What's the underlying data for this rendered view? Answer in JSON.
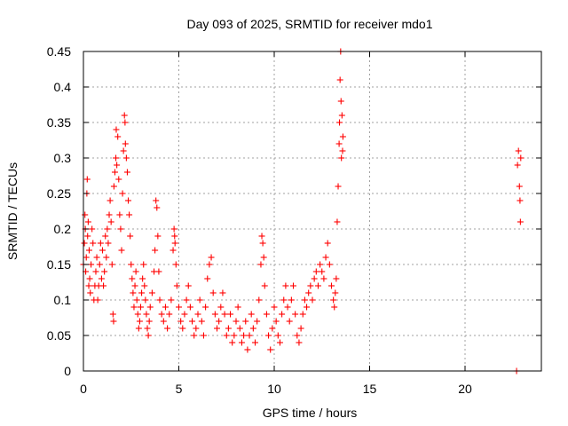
{
  "colors": {
    "series": "#ff0000",
    "grid": "#a0a0a0",
    "axis": "#000000",
    "background": "#ffffff"
  },
  "chart_data": {
    "type": "scatter",
    "title": "Day 093 of 2025, SRMTID for receiver mdo1",
    "xlabel": "GPS time / hours",
    "ylabel": "SRMTID / TECUs",
    "xlim": [
      0,
      24
    ],
    "ylim": [
      0,
      0.45
    ],
    "xticks": [
      0,
      5,
      10,
      15,
      20
    ],
    "xtick_labels": [
      "0",
      "5",
      "10",
      "15",
      "20"
    ],
    "yticks": [
      0,
      0.05,
      0.1,
      0.15,
      0.2,
      0.25,
      0.3,
      0.35,
      0.4,
      0.45
    ],
    "ytick_labels": [
      "0",
      "0.05",
      "0.1",
      "0.15",
      "0.2",
      "0.25",
      "0.3",
      "0.35",
      "0.4",
      "0.45"
    ],
    "grid": true,
    "marker": "+",
    "series": [
      {
        "name": "SRMTID",
        "points": [
          [
            0.0,
            0.15
          ],
          [
            0.05,
            0.18
          ],
          [
            0.08,
            0.22
          ],
          [
            0.1,
            0.2
          ],
          [
            0.12,
            0.14
          ],
          [
            0.15,
            0.16
          ],
          [
            0.18,
            0.25
          ],
          [
            0.2,
            0.27
          ],
          [
            0.22,
            0.19
          ],
          [
            0.25,
            0.21
          ],
          [
            0.28,
            0.12
          ],
          [
            0.3,
            0.17
          ],
          [
            0.33,
            0.13
          ],
          [
            0.36,
            0.11
          ],
          [
            0.4,
            0.15
          ],
          [
            0.45,
            0.2
          ],
          [
            0.5,
            0.18
          ],
          [
            0.55,
            0.1
          ],
          [
            0.6,
            0.12
          ],
          [
            0.65,
            0.14
          ],
          [
            0.7,
            0.16
          ],
          [
            0.75,
            0.1
          ],
          [
            0.8,
            0.12
          ],
          [
            0.85,
            0.15
          ],
          [
            0.9,
            0.18
          ],
          [
            0.95,
            0.13
          ],
          [
            1.0,
            0.17
          ],
          [
            1.05,
            0.12
          ],
          [
            1.1,
            0.14
          ],
          [
            1.15,
            0.19
          ],
          [
            1.2,
            0.16
          ],
          [
            1.25,
            0.2
          ],
          [
            1.3,
            0.18
          ],
          [
            1.35,
            0.22
          ],
          [
            1.4,
            0.24
          ],
          [
            1.45,
            0.21
          ],
          [
            1.5,
            0.15
          ],
          [
            1.55,
            0.08
          ],
          [
            1.58,
            0.07
          ],
          [
            1.6,
            0.26
          ],
          [
            1.65,
            0.28
          ],
          [
            1.7,
            0.3
          ],
          [
            1.72,
            0.34
          ],
          [
            1.75,
            0.29
          ],
          [
            1.8,
            0.33
          ],
          [
            1.85,
            0.27
          ],
          [
            1.9,
            0.22
          ],
          [
            1.95,
            0.2
          ],
          [
            2.0,
            0.17
          ],
          [
            2.05,
            0.25
          ],
          [
            2.1,
            0.31
          ],
          [
            2.15,
            0.36
          ],
          [
            2.18,
            0.35
          ],
          [
            2.2,
            0.32
          ],
          [
            2.25,
            0.3
          ],
          [
            2.3,
            0.28
          ],
          [
            2.35,
            0.24
          ],
          [
            2.4,
            0.22
          ],
          [
            2.45,
            0.19
          ],
          [
            2.5,
            0.15
          ],
          [
            2.55,
            0.13
          ],
          [
            2.6,
            0.11
          ],
          [
            2.65,
            0.09
          ],
          [
            2.7,
            0.12
          ],
          [
            2.75,
            0.14
          ],
          [
            2.8,
            0.1
          ],
          [
            2.85,
            0.08
          ],
          [
            2.9,
            0.06
          ],
          [
            2.95,
            0.07
          ],
          [
            3.0,
            0.09
          ],
          [
            3.05,
            0.11
          ],
          [
            3.1,
            0.13
          ],
          [
            3.15,
            0.15
          ],
          [
            3.2,
            0.12
          ],
          [
            3.25,
            0.1
          ],
          [
            3.3,
            0.08
          ],
          [
            3.35,
            0.06
          ],
          [
            3.4,
            0.05
          ],
          [
            3.45,
            0.07
          ],
          [
            3.5,
            0.09
          ],
          [
            3.6,
            0.11
          ],
          [
            3.7,
            0.14
          ],
          [
            3.75,
            0.17
          ],
          [
            3.8,
            0.24
          ],
          [
            3.85,
            0.23
          ],
          [
            3.9,
            0.19
          ],
          [
            3.95,
            0.14
          ],
          [
            4.0,
            0.1
          ],
          [
            4.1,
            0.08
          ],
          [
            4.2,
            0.07
          ],
          [
            4.3,
            0.09
          ],
          [
            4.4,
            0.06
          ],
          [
            4.5,
            0.08
          ],
          [
            4.6,
            0.1
          ],
          [
            4.7,
            0.17
          ],
          [
            4.75,
            0.2
          ],
          [
            4.78,
            0.19
          ],
          [
            4.8,
            0.18
          ],
          [
            4.85,
            0.15
          ],
          [
            4.9,
            0.12
          ],
          [
            5.0,
            0.09
          ],
          [
            5.1,
            0.07
          ],
          [
            5.2,
            0.06
          ],
          [
            5.3,
            0.08
          ],
          [
            5.4,
            0.1
          ],
          [
            5.5,
            0.12
          ],
          [
            5.6,
            0.09
          ],
          [
            5.7,
            0.07
          ],
          [
            5.8,
            0.05
          ],
          [
            5.9,
            0.06
          ],
          [
            6.0,
            0.08
          ],
          [
            6.1,
            0.1
          ],
          [
            6.2,
            0.07
          ],
          [
            6.3,
            0.05
          ],
          [
            6.4,
            0.09
          ],
          [
            6.5,
            0.13
          ],
          [
            6.6,
            0.15
          ],
          [
            6.7,
            0.16
          ],
          [
            6.8,
            0.11
          ],
          [
            6.9,
            0.08
          ],
          [
            7.0,
            0.06
          ],
          [
            7.1,
            0.07
          ],
          [
            7.2,
            0.09
          ],
          [
            7.3,
            0.11
          ],
          [
            7.4,
            0.08
          ],
          [
            7.5,
            0.05
          ],
          [
            7.6,
            0.06
          ],
          [
            7.7,
            0.08
          ],
          [
            7.8,
            0.04
          ],
          [
            7.9,
            0.05
          ],
          [
            8.0,
            0.07
          ],
          [
            8.1,
            0.09
          ],
          [
            8.2,
            0.06
          ],
          [
            8.3,
            0.04
          ],
          [
            8.4,
            0.05
          ],
          [
            8.5,
            0.07
          ],
          [
            8.6,
            0.03
          ],
          [
            8.7,
            0.05
          ],
          [
            8.8,
            0.08
          ],
          [
            8.9,
            0.06
          ],
          [
            9.0,
            0.04
          ],
          [
            9.1,
            0.07
          ],
          [
            9.2,
            0.1
          ],
          [
            9.3,
            0.15
          ],
          [
            9.35,
            0.19
          ],
          [
            9.4,
            0.18
          ],
          [
            9.45,
            0.16
          ],
          [
            9.5,
            0.12
          ],
          [
            9.6,
            0.08
          ],
          [
            9.7,
            0.05
          ],
          [
            9.8,
            0.03
          ],
          [
            9.9,
            0.06
          ],
          [
            10.0,
            0.09
          ],
          [
            10.1,
            0.07
          ],
          [
            10.2,
            0.05
          ],
          [
            10.3,
            0.04
          ],
          [
            10.4,
            0.08
          ],
          [
            10.5,
            0.1
          ],
          [
            10.6,
            0.12
          ],
          [
            10.7,
            0.09
          ],
          [
            10.8,
            0.07
          ],
          [
            10.9,
            0.1
          ],
          [
            11.0,
            0.12
          ],
          [
            11.1,
            0.08
          ],
          [
            11.2,
            0.05
          ],
          [
            11.3,
            0.04
          ],
          [
            11.4,
            0.06
          ],
          [
            11.5,
            0.08
          ],
          [
            11.6,
            0.1
          ],
          [
            11.7,
            0.09
          ],
          [
            11.8,
            0.11
          ],
          [
            11.9,
            0.12
          ],
          [
            12.0,
            0.1
          ],
          [
            12.1,
            0.13
          ],
          [
            12.2,
            0.14
          ],
          [
            12.3,
            0.12
          ],
          [
            12.4,
            0.15
          ],
          [
            12.5,
            0.14
          ],
          [
            12.6,
            0.13
          ],
          [
            12.7,
            0.16
          ],
          [
            12.8,
            0.18
          ],
          [
            12.9,
            0.15
          ],
          [
            13.0,
            0.12
          ],
          [
            13.1,
            0.1
          ],
          [
            13.15,
            0.09
          ],
          [
            13.2,
            0.11
          ],
          [
            13.25,
            0.13
          ],
          [
            13.3,
            0.21
          ],
          [
            13.35,
            0.26
          ],
          [
            13.4,
            0.32
          ],
          [
            13.42,
            0.35
          ],
          [
            13.45,
            0.41
          ],
          [
            13.48,
            0.45
          ],
          [
            13.5,
            0.38
          ],
          [
            13.52,
            0.3
          ],
          [
            13.55,
            0.36
          ],
          [
            13.58,
            0.31
          ],
          [
            13.6,
            0.33
          ],
          [
            22.7,
            0.0
          ],
          [
            22.75,
            0.29
          ],
          [
            22.8,
            0.31
          ],
          [
            22.85,
            0.26
          ],
          [
            22.88,
            0.24
          ],
          [
            22.9,
            0.21
          ],
          [
            22.92,
            0.3
          ]
        ]
      }
    ]
  }
}
